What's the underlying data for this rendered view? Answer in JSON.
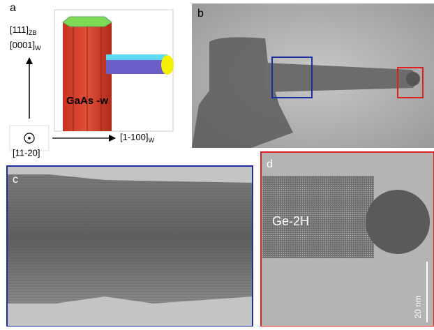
{
  "panel_a": {
    "label": "a",
    "axis_up_1": {
      "main": "[111]",
      "sub": "ZB"
    },
    "axis_up_2": {
      "main": "[0001]",
      "sub": "W"
    },
    "axis_out": "[11-20]",
    "axis_right": {
      "main": "[1-100]",
      "sub": "W"
    },
    "structure_label": "GaAs -w"
  },
  "panel_b": {
    "label": "b"
  },
  "panel_c": {
    "label": "c"
  },
  "panel_d": {
    "label": "d",
    "phase_label": "Ge-2H",
    "scale_bar": "20 nm"
  }
}
